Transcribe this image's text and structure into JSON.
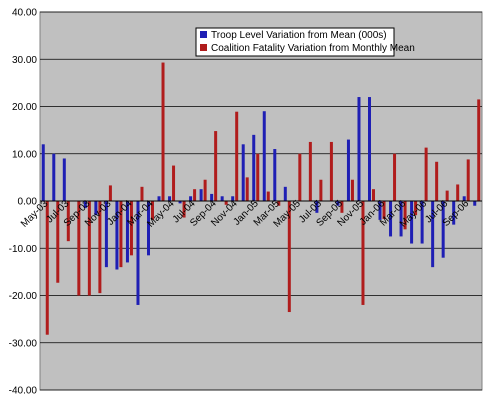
{
  "chart_data": {
    "type": "bar",
    "title": "",
    "xlabel": "",
    "ylabel": "",
    "ylim": [
      -40,
      40
    ],
    "y_ticks": [
      "40.00",
      "30.00",
      "20.00",
      "10.00",
      "0.00",
      "-10.00",
      "-20.00",
      "-30.00",
      "-40.00"
    ],
    "grid": true,
    "legend_position": "top-right",
    "colors": {
      "plot_bg": "#c0c0c0",
      "series1": "#1f1fb4",
      "series2": "#b01c1c",
      "grid": "#000000"
    },
    "categories": [
      "May-03",
      "Jun-03",
      "Jul-03",
      "Aug-03",
      "Sep-03",
      "Oct-03",
      "Nov-03",
      "Dec-03",
      "Jan-04",
      "Feb-04",
      "Mar-04",
      "Apr-04",
      "May-04",
      "Jun-04",
      "Jul-04",
      "Aug-04",
      "Sep-04",
      "Oct-04",
      "Nov-04",
      "Dec-04",
      "Jan-05",
      "Feb-05",
      "Mar-05",
      "Apr-05",
      "May-05",
      "Jun-05",
      "Jul-05",
      "Aug-05",
      "Sep-05",
      "Oct-05",
      "Nov-05",
      "Dec-05",
      "Jan-06",
      "Feb-06",
      "Mar-06",
      "Apr-06",
      "May-06",
      "Jun-06",
      "Jul-06",
      "Aug-06",
      "Sep-06",
      "Oct-06"
    ],
    "x_tick_labels": [
      "May-03",
      "Jul-03",
      "Sep-03",
      "Nov-03",
      "Jan-04",
      "Mar-04",
      "May-04",
      "Jul-04",
      "Sep-04",
      "Nov-04",
      "Jan-05",
      "Mar-05",
      "May-05",
      "Jul-05",
      "Sep-05",
      "Nov-05",
      "Jan-06",
      "Mar-06",
      "May-06",
      "Jul-06",
      "Sep-06"
    ],
    "series": [
      {
        "name": "Troop Level Variation from Mean (000s)",
        "values": [
          12,
          10,
          9,
          0,
          -1.5,
          -3,
          -14,
          -14.5,
          -13,
          -22,
          -11.5,
          1,
          1,
          -0.5,
          1,
          2.5,
          1.5,
          1,
          1,
          12,
          14,
          19,
          11,
          3,
          0,
          0,
          -2.5,
          0,
          -1,
          13,
          22,
          22,
          -4,
          -7.5,
          -7.5,
          -9,
          -9,
          -14,
          -12,
          -5,
          1,
          -1
        ]
      },
      {
        "name": "Coalition Fatality Variation from Monthly Mean",
        "values": [
          -28.3,
          -17.3,
          -8.5,
          -20,
          -20,
          -19.5,
          3.3,
          -14,
          -11.5,
          3,
          -4,
          29.3,
          7.5,
          -3.5,
          2.5,
          4.5,
          14.8,
          -0.8,
          18.9,
          5,
          10,
          2,
          -1,
          -23.5,
          10,
          12.5,
          4.5,
          12.5,
          -2.5,
          4.5,
          -22,
          2.5,
          -3.8,
          10,
          -6,
          -3,
          11.3,
          8.3,
          2.2,
          3.5,
          8.8,
          21.5
        ]
      }
    ]
  }
}
